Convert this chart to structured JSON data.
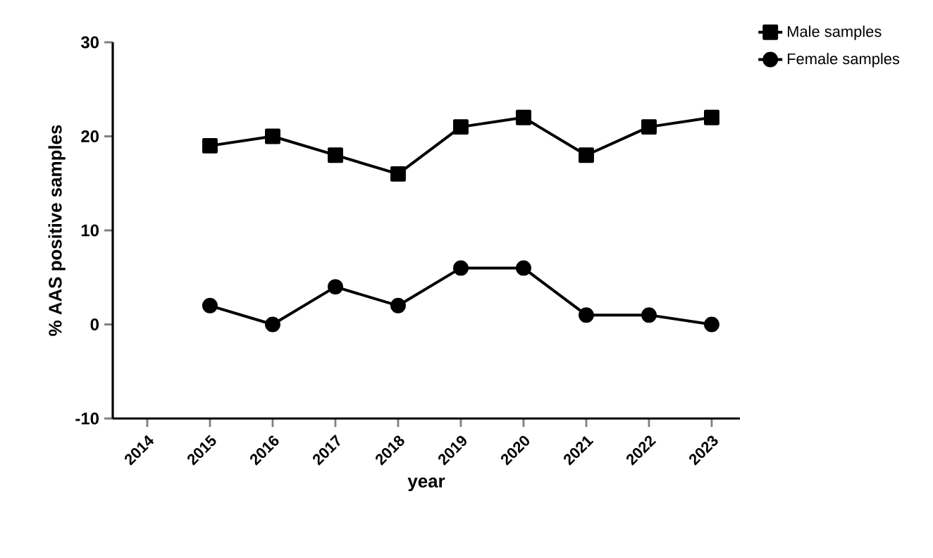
{
  "chart_data": {
    "type": "line",
    "xlabel": "year",
    "ylabel": "% AAS positive samples",
    "categories": [
      "2014",
      "2015",
      "2016",
      "2017",
      "2018",
      "2019",
      "2020",
      "2021",
      "2022",
      "2023"
    ],
    "series": [
      {
        "name": "Male samples",
        "color": "#000000",
        "marker": "square",
        "values": [
          null,
          19,
          20,
          18,
          16,
          21,
          22,
          18,
          21,
          22
        ]
      },
      {
        "name": "Female samples",
        "color": "#000000",
        "marker": "circle",
        "values": [
          null,
          2,
          0,
          4,
          2,
          6,
          6,
          1,
          1,
          0
        ]
      }
    ],
    "ylim": [
      -10,
      30
    ],
    "yticks": [
      -10,
      0,
      10,
      20,
      30
    ],
    "legend": "top right",
    "grid": false,
    "line_style": "solid"
  }
}
